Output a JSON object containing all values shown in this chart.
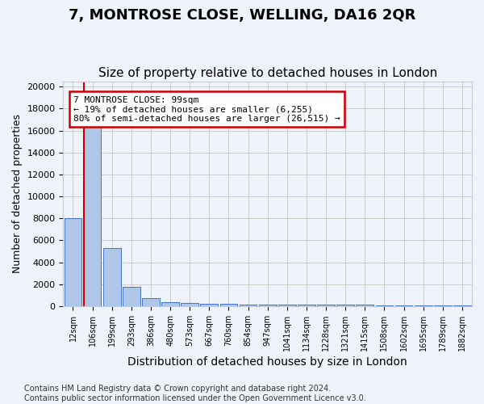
{
  "title": "7, MONTROSE CLOSE, WELLING, DA16 2QR",
  "subtitle": "Size of property relative to detached houses in London",
  "xlabel": "Distribution of detached houses by size in London",
  "ylabel": "Number of detached properties",
  "bar_values": [
    8050,
    16650,
    5300,
    1750,
    700,
    380,
    280,
    200,
    180,
    160,
    150,
    140,
    130,
    120,
    110,
    100,
    90,
    80,
    70,
    60,
    50
  ],
  "bar_labels": [
    "12sqm",
    "106sqm",
    "199sqm",
    "293sqm",
    "386sqm",
    "480sqm",
    "573sqm",
    "667sqm",
    "760sqm",
    "854sqm",
    "947sqm",
    "1041sqm",
    "1134sqm",
    "1228sqm",
    "1321sqm",
    "1415sqm",
    "1508sqm",
    "1602sqm",
    "1695sqm",
    "1789sqm",
    "1882sqm"
  ],
  "bar_color": "#aec6e8",
  "bar_edge_color": "#4472c4",
  "annotation_box_text": "7 MONTROSE CLOSE: 99sqm\n← 19% of detached houses are smaller (6,255)\n80% of semi-detached houses are larger (26,515) →",
  "annotation_box_color": "#ffffff",
  "annotation_box_edge_color": "#cc0000",
  "red_line_color": "#cc0000",
  "red_line_x": 0.55,
  "ylim": [
    0,
    20500
  ],
  "yticks": [
    0,
    2000,
    4000,
    6000,
    8000,
    10000,
    12000,
    14000,
    16000,
    18000,
    20000
  ],
  "grid_color": "#cccccc",
  "bg_color": "#eef2fa",
  "footnote": "Contains HM Land Registry data © Crown copyright and database right 2024.\nContains public sector information licensed under the Open Government Licence v3.0.",
  "title_fontsize": 13,
  "subtitle_fontsize": 11,
  "xlabel_fontsize": 10,
  "ylabel_fontsize": 9,
  "tick_fontsize": 8,
  "annot_fontsize": 8,
  "footnote_fontsize": 7
}
